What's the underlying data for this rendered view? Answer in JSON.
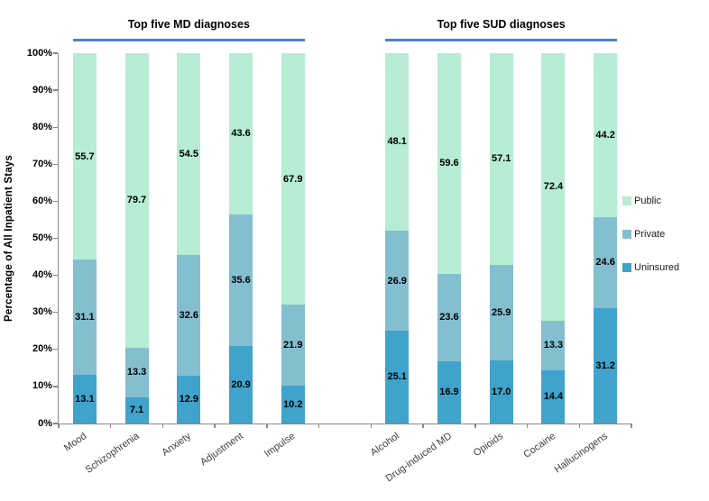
{
  "chart_data": {
    "type": "bar",
    "stacked": true,
    "title": "",
    "ylabel": "Percentage of All Inpatient Stays",
    "xlabel": "",
    "ylim": [
      0,
      100
    ],
    "grid": false,
    "yticks": [
      "0%",
      "10%",
      "20%",
      "30%",
      "40%",
      "50%",
      "60%",
      "70%",
      "80%",
      "90%",
      "100%"
    ],
    "legend_position": "right",
    "legend_order": [
      "Public",
      "Private",
      "Uninsured"
    ],
    "groups": [
      {
        "title": "Top five MD diagnoses",
        "categories": [
          "Mood",
          "Schizophrenia",
          "Anxiety",
          "Adjustment",
          "Impulse"
        ]
      },
      {
        "title": "Top five SUD diagnoses",
        "categories": [
          "Alcohol",
          "Drug-induced MD",
          "Opioids",
          "Cocaine",
          "Hallucinogens"
        ]
      }
    ],
    "series": [
      {
        "name": "Uninsured",
        "color": "#3fa3cc",
        "values": [
          13.1,
          7.1,
          12.9,
          20.9,
          10.2,
          25.1,
          16.9,
          17.0,
          14.4,
          31.2
        ]
      },
      {
        "name": "Private",
        "color": "#84bfd0",
        "values": [
          31.1,
          13.3,
          32.6,
          35.6,
          21.9,
          26.9,
          23.6,
          25.9,
          13.3,
          24.6
        ]
      },
      {
        "name": "Public",
        "color": "#b7ecd5",
        "values": [
          55.7,
          79.7,
          54.5,
          43.6,
          67.9,
          48.1,
          59.6,
          57.1,
          72.4,
          44.2
        ]
      }
    ],
    "accent_line_color": "#4f81bd",
    "axis_color": "#898989"
  }
}
